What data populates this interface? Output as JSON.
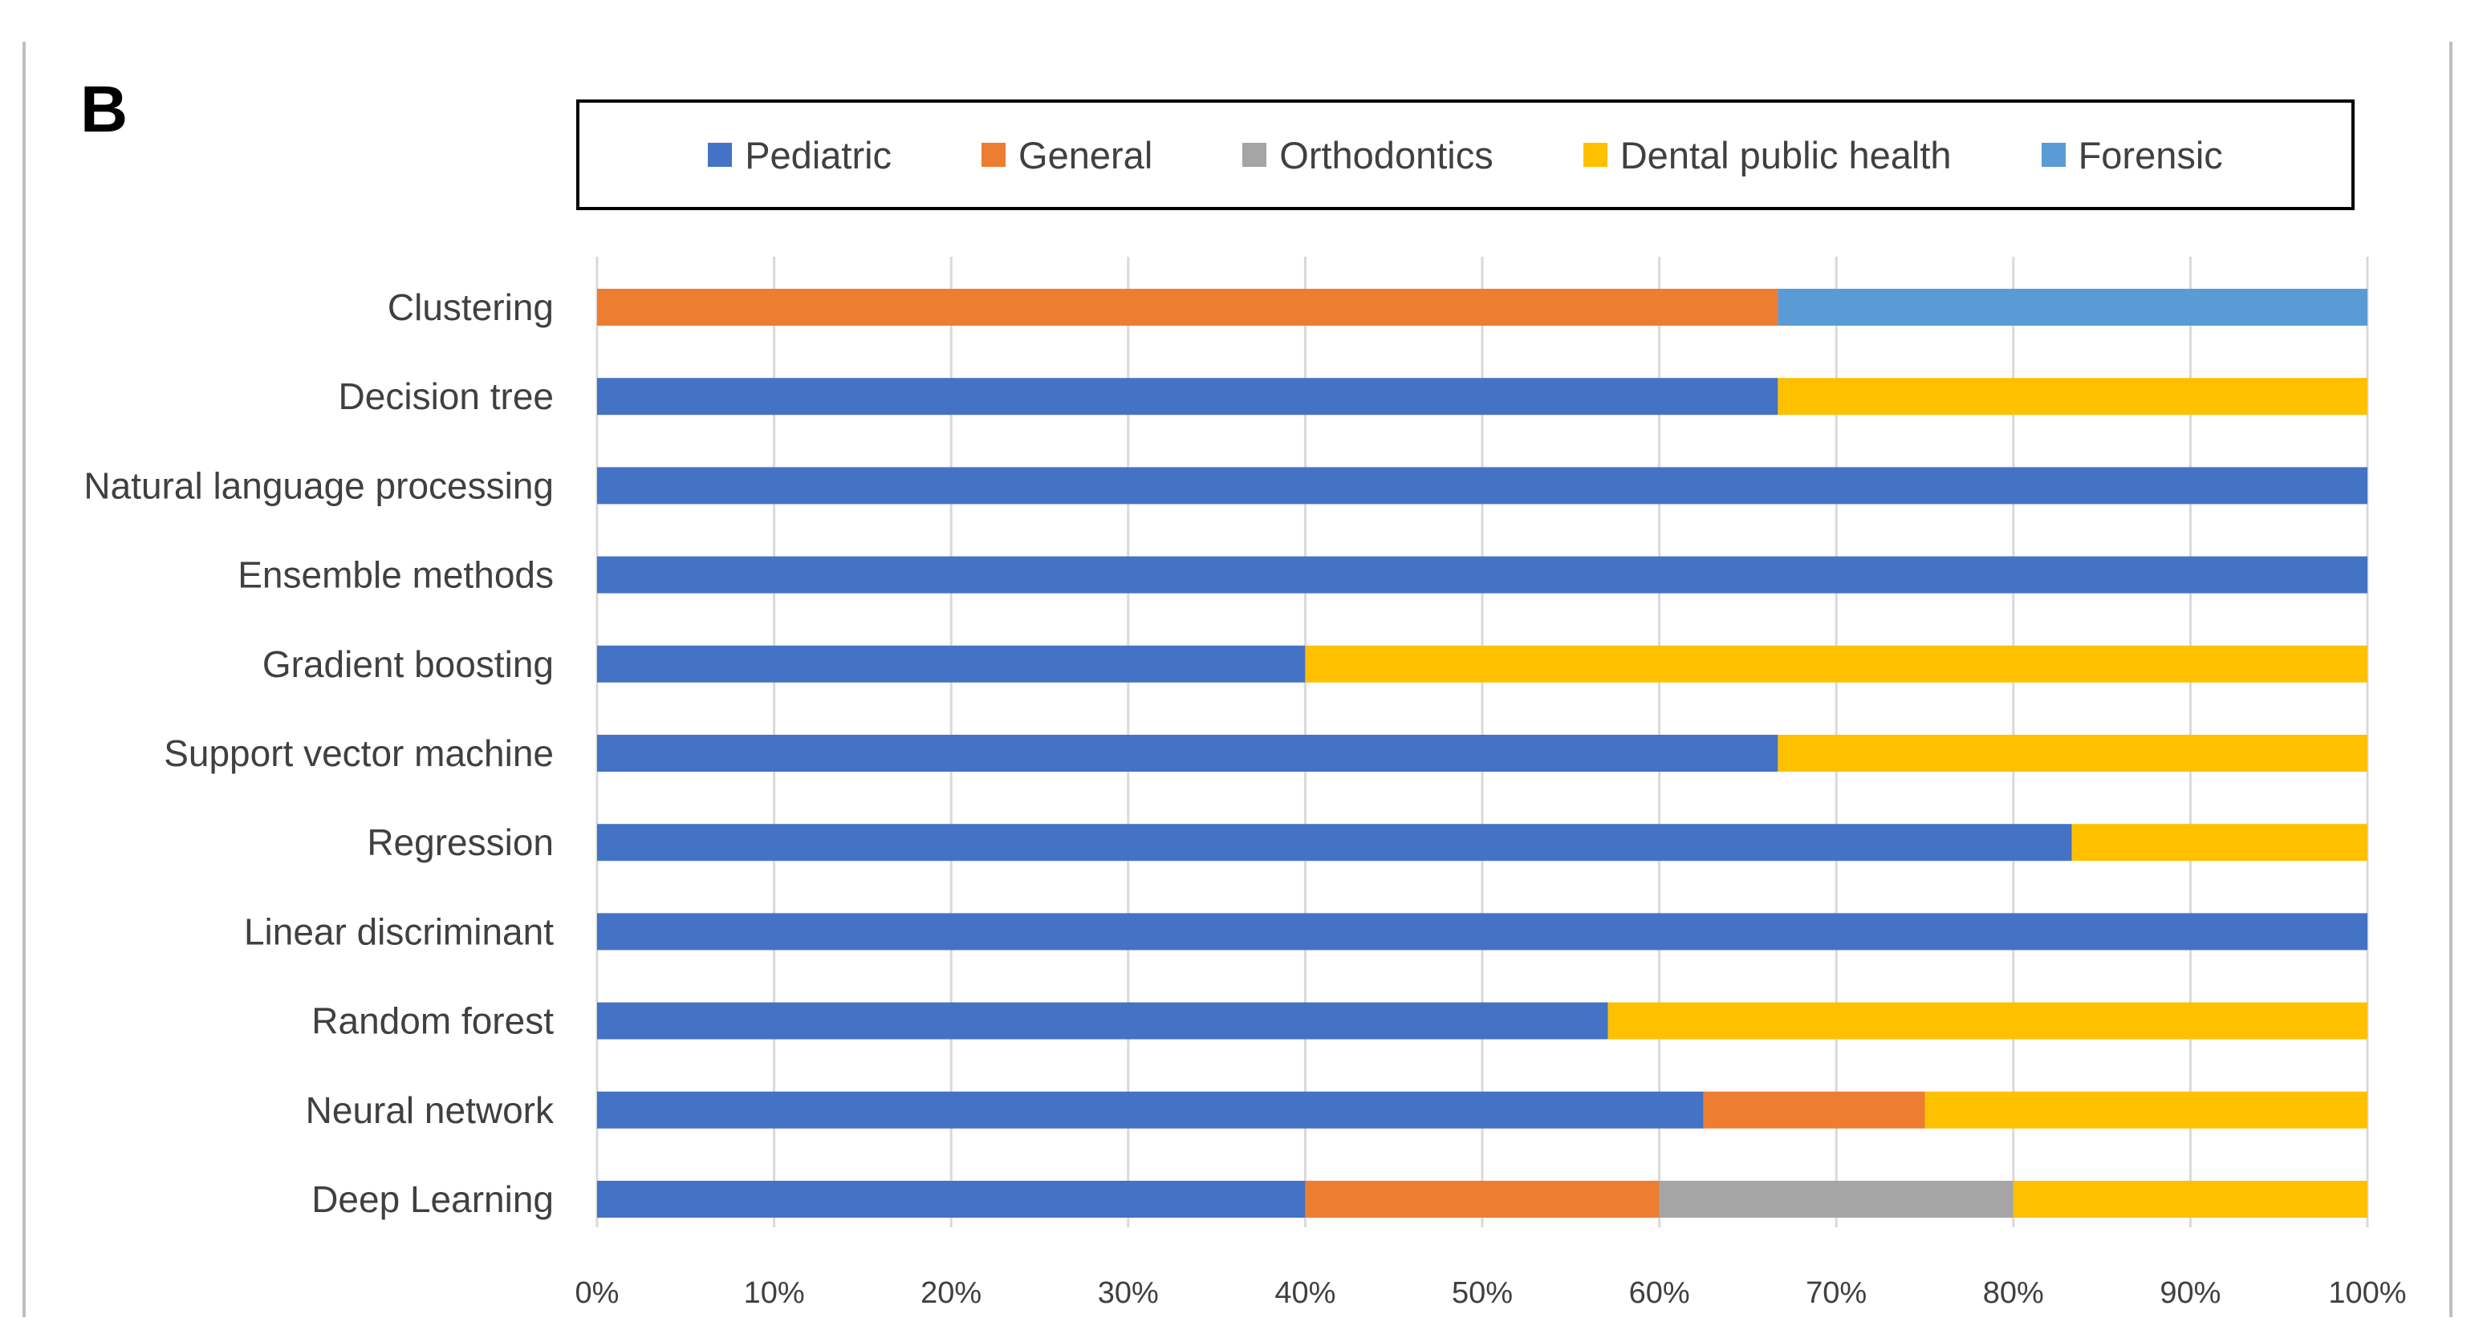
{
  "panel_label": "B",
  "colors": {
    "Pediatric": "#4472c4",
    "General": "#ed7d31",
    "Orthodontics": "#a5a5a5",
    "Dental public health": "#ffc000",
    "Forensic": "#5b9bd5"
  },
  "chart_data": {
    "type": "bar",
    "orientation": "horizontal",
    "stacked": "percent",
    "title": "",
    "xlabel": "",
    "ylabel": "",
    "xlim": [
      0,
      100
    ],
    "x_ticks": [
      "0%",
      "10%",
      "20%",
      "30%",
      "40%",
      "50%",
      "60%",
      "70%",
      "80%",
      "90%",
      "100%"
    ],
    "grid": true,
    "legend_position": "top",
    "categories": [
      "Clustering",
      "Decision tree",
      "Natural language processing",
      "Ensemble methods",
      "Gradient boosting",
      "Support vector machine",
      "Regression",
      "Linear discriminant",
      "Random forest",
      "Neural network",
      "Deep Learning"
    ],
    "series": [
      {
        "name": "Pediatric",
        "values": [
          0,
          66.7,
          100,
          100,
          40,
          66.7,
          83.3,
          100,
          57.1,
          62.5,
          40
        ]
      },
      {
        "name": "General",
        "values": [
          66.7,
          0,
          0,
          0,
          0,
          0,
          0,
          0,
          0,
          12.5,
          20
        ]
      },
      {
        "name": "Orthodontics",
        "values": [
          0,
          0,
          0,
          0,
          0,
          0,
          0,
          0,
          0,
          0,
          20
        ]
      },
      {
        "name": "Dental public health",
        "values": [
          0,
          33.3,
          0,
          0,
          60,
          33.3,
          16.7,
          0,
          42.9,
          25,
          20
        ]
      },
      {
        "name": "Forensic",
        "values": [
          33.3,
          0,
          0,
          0,
          0,
          0,
          0,
          0,
          0,
          0,
          0
        ]
      }
    ]
  }
}
